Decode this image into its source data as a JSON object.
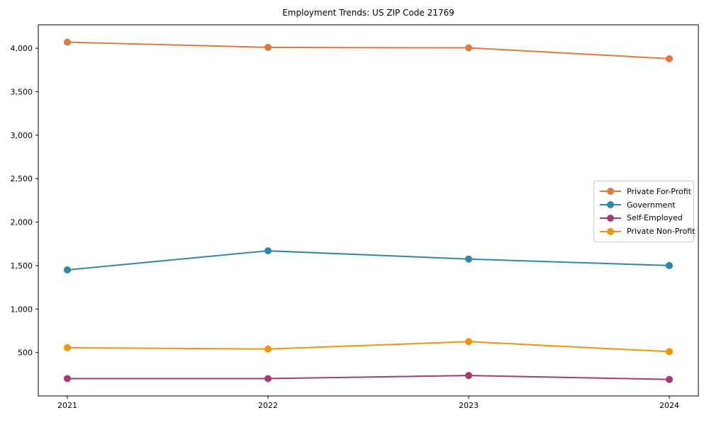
{
  "chart_data": {
    "type": "line",
    "title": "Employment Trends: US ZIP Code 21769",
    "xlabel": "",
    "ylabel": "",
    "categories": [
      "2021",
      "2022",
      "2023",
      "2024"
    ],
    "series": [
      {
        "name": "Private For-Profit",
        "color": "#E1793E",
        "values": [
          4070,
          4010,
          4005,
          3880
        ]
      },
      {
        "name": "Government",
        "color": "#2E86AB",
        "values": [
          1450,
          1670,
          1575,
          1500
        ]
      },
      {
        "name": "Self-Employed",
        "color": "#A23B72",
        "values": [
          200,
          200,
          235,
          190
        ]
      },
      {
        "name": "Private Non-Profit",
        "color": "#F0940A",
        "values": [
          555,
          540,
          625,
          510
        ]
      }
    ],
    "ylim": [
      0,
      4270
    ],
    "y_ticks": [
      500,
      1000,
      1500,
      2000,
      2500,
      3000,
      3500,
      4000
    ],
    "y_tick_labels": [
      "500",
      "1,000",
      "1,500",
      "2,000",
      "2,500",
      "3,000",
      "3,500",
      "4,000"
    ],
    "grid": false,
    "marker": "o",
    "legend_position": "center right",
    "axis_color": "#000000",
    "background_color": "#ffffff"
  }
}
